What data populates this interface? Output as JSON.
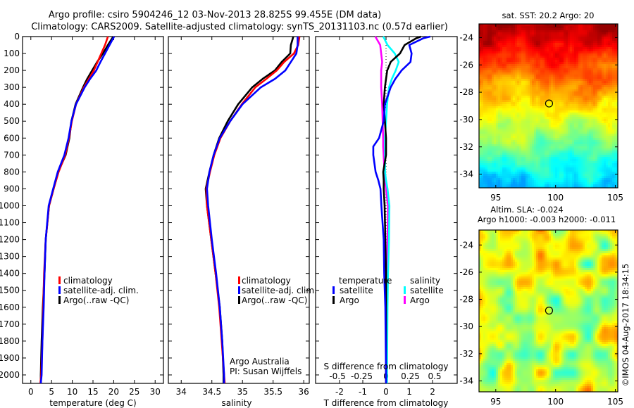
{
  "header": {
    "title_line1": "Argo profile: csiro 5904246_12 03-Nov-2013 28.825S 99.455E (DM data)",
    "title_line2": "Climatology: CARS2009. Satellite-adjusted climatology: synTS_20131103.nc (0.57d earlier)"
  },
  "colors": {
    "climatology": "#ff0000",
    "satellite": "#0000ff",
    "argo": "#000000",
    "sal_satellite": "#00ffff",
    "sal_argo": "#ff00ff"
  },
  "credits": {
    "line1": "Argo Australia",
    "line2": "PI: Susan Wijffels"
  },
  "timestamp": "©IMOS 04-Aug-2017 18:34:15",
  "chart_data": [
    {
      "type": "line",
      "name": "temperature-profile",
      "xlabel": "temperature (deg C)",
      "ylabel": "depth",
      "xlim": [
        -2,
        32
      ],
      "ylim": [
        2050,
        0
      ],
      "xticks": [
        0,
        5,
        10,
        15,
        20,
        25,
        30
      ],
      "yticks": [
        0,
        100,
        200,
        300,
        400,
        500,
        600,
        700,
        800,
        900,
        1000,
        1100,
        1200,
        1300,
        1400,
        1500,
        1600,
        1700,
        1800,
        1900,
        2000
      ],
      "legend": [
        "climatology",
        "satellite-adj. clim.",
        "Argo(..raw -QC)"
      ],
      "depth": [
        0,
        50,
        100,
        150,
        200,
        250,
        300,
        400,
        500,
        600,
        700,
        800,
        900,
        1000,
        1200,
        1400,
        1600,
        1800,
        2000,
        2050
      ],
      "series": [
        {
          "name": "climatology",
          "values": [
            18.6,
            17.9,
            17.0,
            16.1,
            15.2,
            14.0,
            12.8,
            10.9,
            9.9,
            9.2,
            8.3,
            6.7,
            5.5,
            4.4,
            3.6,
            3.2,
            3.0,
            2.8,
            2.5,
            2.3
          ]
        },
        {
          "name": "satellite-adj. clim.",
          "values": [
            20.1,
            19.0,
            17.9,
            16.8,
            15.8,
            14.3,
            13.0,
            10.9,
            9.8,
            9.1,
            8.1,
            6.5,
            5.4,
            4.3,
            3.6,
            3.3,
            3.1,
            2.8,
            2.6,
            2.4
          ]
        },
        {
          "name": "Argo(..raw -QC)",
          "values": [
            19.9,
            18.6,
            17.4,
            16.0,
            14.8,
            13.6,
            12.6,
            10.8,
            9.8,
            9.3,
            8.4,
            6.6,
            5.5,
            4.4,
            3.6,
            3.3,
            2.9,
            2.6,
            2.4,
            2.4
          ]
        }
      ]
    },
    {
      "type": "line",
      "name": "salinity-profile",
      "xlabel": "salinity",
      "xlim": [
        33.79,
        36.09
      ],
      "ylim": [
        2050,
        0
      ],
      "xticks": [
        34,
        34.5,
        35,
        35.5,
        36
      ],
      "legend": [
        "climatology",
        "satellite-adj. clim.",
        "Argo(..raw -QC)"
      ],
      "depth": [
        0,
        50,
        100,
        150,
        200,
        250,
        300,
        400,
        500,
        600,
        700,
        800,
        900,
        1000,
        1200,
        1400,
        1600,
        1800,
        2000,
        2050
      ],
      "series": [
        {
          "name": "climatology",
          "values": [
            35.93,
            35.91,
            35.84,
            35.68,
            35.56,
            35.39,
            35.21,
            34.99,
            34.8,
            34.64,
            34.54,
            34.47,
            34.41,
            34.42,
            34.49,
            34.56,
            34.62,
            34.66,
            34.7,
            34.71
          ]
        },
        {
          "name": "satellite-adj. clim.",
          "values": [
            35.9,
            35.9,
            35.88,
            35.79,
            35.7,
            35.53,
            35.3,
            35.0,
            34.8,
            34.63,
            34.53,
            34.46,
            34.42,
            34.44,
            34.5,
            34.57,
            34.63,
            34.67,
            34.7,
            34.7
          ]
        },
        {
          "name": "Argo(..raw -QC)",
          "values": [
            35.83,
            35.79,
            35.78,
            35.64,
            35.53,
            35.33,
            35.16,
            34.93,
            34.76,
            34.62,
            34.53,
            34.46,
            34.4,
            34.42,
            34.49,
            34.56,
            34.63,
            34.67,
            34.69,
            34.69
          ]
        }
      ]
    },
    {
      "type": "line",
      "name": "difference-profile",
      "xlabel": "T difference from climatology",
      "xlabel2": "S difference from climatology",
      "xlim": [
        -3.03,
        3.06
      ],
      "xlim2": [
        -0.725,
        0.732
      ],
      "ylim": [
        2050,
        0
      ],
      "xticks": [
        -2,
        -1,
        0,
        1,
        2
      ],
      "xticks2": [
        "-0.5",
        "-0.25",
        "0",
        "0.25",
        "0.5"
      ],
      "xticks2_values": [
        -0.5,
        -0.25,
        0,
        0.25,
        0.5
      ],
      "legend_headers": [
        "temperature",
        "salinity"
      ],
      "legend": [
        "satellite",
        "Argo",
        "satellite",
        "Argo"
      ],
      "depth": [
        0,
        10,
        50,
        100,
        150,
        200,
        250,
        300,
        400,
        500,
        600,
        650,
        700,
        800,
        850,
        900,
        1000,
        1200,
        1400,
        1600,
        2000,
        2050
      ],
      "series": [
        {
          "name": "T satellite",
          "axis": "T",
          "values": [
            1.9,
            1.6,
            1.0,
            1.1,
            1.05,
            0.67,
            0.4,
            0.2,
            -0.05,
            -0.1,
            -0.3,
            -0.55,
            -0.55,
            -0.45,
            -0.33,
            -0.24,
            -0.2,
            -0.1,
            -0.08,
            -0.03,
            0,
            0
          ]
        },
        {
          "name": "T Argo",
          "axis": "T",
          "values": [
            1.5,
            1.3,
            0.8,
            0.6,
            0.2,
            0.05,
            0.0,
            -0.05,
            -0.1,
            -0.05,
            0.0,
            0.0,
            0.0,
            -0.12,
            -0.1,
            -0.1,
            -0.06,
            -0.03,
            0,
            0,
            0,
            0
          ]
        },
        {
          "name": "S satellite",
          "axis": "S",
          "values": [
            -0.03,
            -0.02,
            0.015,
            0.09,
            0.13,
            0.1,
            0.06,
            0.03,
            0.01,
            0.0,
            -0.01,
            -0.01,
            -0.01,
            -0.01,
            0.0,
            0.015,
            0.035,
            0.03,
            0.02,
            0.015,
            0.01,
            0.01
          ]
        },
        {
          "name": "S Argo",
          "axis": "S",
          "values": [
            -0.11,
            -0.1,
            -0.06,
            -0.05,
            -0.04,
            -0.05,
            -0.05,
            -0.05,
            -0.04,
            -0.035,
            -0.03,
            -0.03,
            -0.025,
            -0.015,
            -0.01,
            0.0,
            0.02,
            0.015,
            0.01,
            0.005,
            0,
            0
          ]
        }
      ]
    },
    {
      "type": "heatmap",
      "name": "sst-map",
      "title": "sat. SST: 20.2 Argo: 20",
      "xlim": [
        93.6,
        105.2
      ],
      "ylim": [
        -35,
        -23
      ],
      "xticks": [
        95,
        100,
        105
      ],
      "yticks": [
        -24,
        -26,
        -28,
        -30,
        -32,
        -34
      ],
      "marker": {
        "lon": 99.455,
        "lat": -28.825
      }
    },
    {
      "type": "heatmap",
      "name": "sla-map",
      "title_line1": "Altim. SLA: -0.024",
      "title_line2": "Argo h1000: -0.003 h2000: -0.011",
      "xlim": [
        93.6,
        105.2
      ],
      "ylim": [
        -34.8,
        -22.9
      ],
      "xticks": [
        95,
        100,
        105
      ],
      "yticks": [
        -24,
        -26,
        -28,
        -30,
        -32,
        -34
      ],
      "marker": {
        "lon": 99.455,
        "lat": -28.825
      }
    }
  ]
}
